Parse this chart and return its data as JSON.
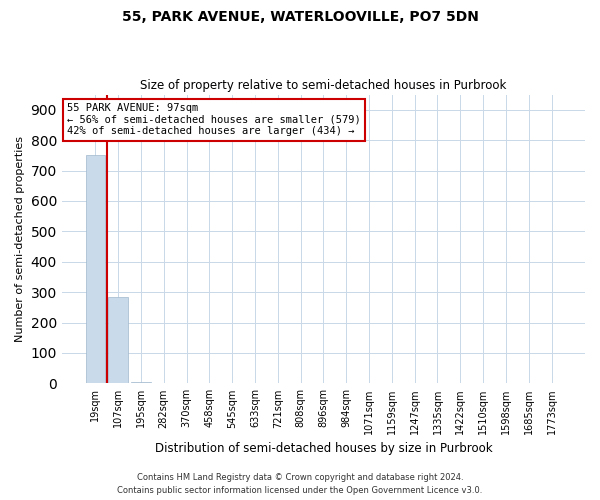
{
  "title_line1": "55, PARK AVENUE, WATERLOOVILLE, PO7 5DN",
  "title_line2": "Size of property relative to semi-detached houses in Purbrook",
  "xlabel": "Distribution of semi-detached houses by size in Purbrook",
  "ylabel": "Number of semi-detached properties",
  "categories": [
    "19sqm",
    "107sqm",
    "195sqm",
    "282sqm",
    "370sqm",
    "458sqm",
    "545sqm",
    "633sqm",
    "721sqm",
    "808sqm",
    "896sqm",
    "984sqm",
    "1071sqm",
    "1159sqm",
    "1247sqm",
    "1335sqm",
    "1422sqm",
    "1510sqm",
    "1598sqm",
    "1685sqm",
    "1773sqm"
  ],
  "values": [
    750,
    285,
    3,
    1,
    0,
    0,
    0,
    0,
    0,
    0,
    0,
    0,
    0,
    0,
    0,
    0,
    0,
    0,
    0,
    0,
    0
  ],
  "bar_color": "#c9daea",
  "bar_edgecolor": "#a0b8cc",
  "property_line_color": "#cc0000",
  "annotation_text_line1": "55 PARK AVENUE: 97sqm",
  "annotation_text_line2": "← 56% of semi-detached houses are smaller (579)",
  "annotation_text_line3": "42% of semi-detached houses are larger (434) →",
  "annotation_box_edgecolor": "#cc0000",
  "ylim_max": 950,
  "yticks": [
    0,
    100,
    200,
    300,
    400,
    500,
    600,
    700,
    800,
    900
  ],
  "footer_line1": "Contains HM Land Registry data © Crown copyright and database right 2024.",
  "footer_line2": "Contains public sector information licensed under the Open Government Licence v3.0.",
  "background_color": "#ffffff",
  "grid_color": "#c8d8e8"
}
